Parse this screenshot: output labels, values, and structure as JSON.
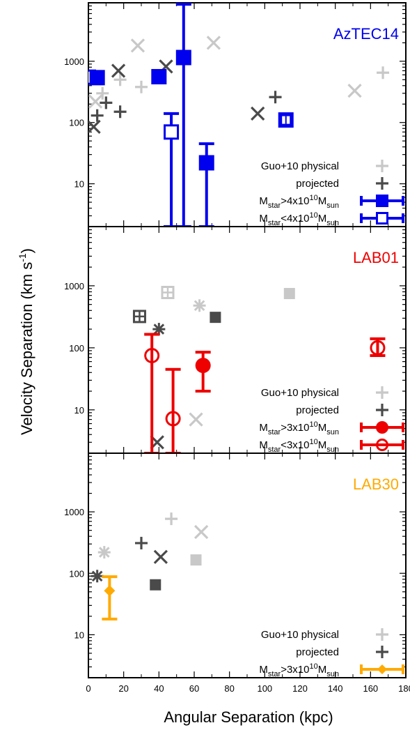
{
  "chart_data": {
    "type": "scatter",
    "xlabel": "Angular Separation (kpc)",
    "ylabel": "Velocity Separation (km s",
    "ylabel_sup": "-1",
    "ylabel_close": ")",
    "x_ticks": [
      0,
      20,
      40,
      60,
      80,
      100,
      120,
      140,
      160,
      180
    ],
    "y_ticks": [
      10,
      100,
      1000
    ],
    "xlim": [
      0,
      180
    ],
    "ylim": [
      2,
      9000
    ],
    "yscale": "log",
    "colors": {
      "physical": "#c8c8c8",
      "projected": "#4a4a4a"
    },
    "panels": [
      {
        "title": "AzTEC14",
        "color": "#0000ee",
        "legend": [
          {
            "kind": "physical",
            "label": "Guo+10 physical"
          },
          {
            "kind": "projected",
            "label": "projected"
          },
          {
            "kind": "filled",
            "marker": "square",
            "label": "M",
            "sub1": "star",
            "mid": ">4x10",
            "sup": "10",
            "m2": "M",
            "sub2": "sun"
          },
          {
            "kind": "open",
            "marker": "square",
            "label": "M",
            "sub1": "star",
            "mid": "<4x10",
            "sup": "10",
            "m2": "M",
            "sub2": "sun"
          }
        ],
        "points": [
          {
            "m": "x",
            "c": "physical",
            "x": 28,
            "y": 1800
          },
          {
            "m": "x",
            "c": "physical",
            "x": 71,
            "y": 2000
          },
          {
            "m": "x",
            "c": "physical",
            "x": 4,
            "y": 220
          },
          {
            "m": "x",
            "c": "physical",
            "x": 151,
            "y": 330
          },
          {
            "m": "+",
            "c": "physical",
            "x": 30,
            "y": 380
          },
          {
            "m": "+",
            "c": "physical",
            "x": 18,
            "y": 500
          },
          {
            "m": "+",
            "c": "physical",
            "x": 8,
            "y": 300
          },
          {
            "m": "+",
            "c": "physical",
            "x": 167,
            "y": 650
          },
          {
            "m": "x",
            "c": "projected",
            "x": 17,
            "y": 700
          },
          {
            "m": "x",
            "c": "projected",
            "x": 44,
            "y": 820
          },
          {
            "m": "x",
            "c": "projected",
            "x": 3,
            "y": 85
          },
          {
            "m": "x",
            "c": "projected",
            "x": 96,
            "y": 140
          },
          {
            "m": "+",
            "c": "projected",
            "x": 10,
            "y": 210
          },
          {
            "m": "+",
            "c": "projected",
            "x": 18,
            "y": 150
          },
          {
            "m": "+",
            "c": "projected",
            "x": 5,
            "y": 130
          },
          {
            "m": "+",
            "c": "projected",
            "x": 106,
            "y": 260
          }
        ],
        "measurements": [
          {
            "marker": "open-square",
            "x": 0,
            "y": 550
          },
          {
            "marker": "filled-square",
            "x": 5,
            "y": 540
          },
          {
            "marker": "filled-square",
            "x": 40,
            "y": 560
          },
          {
            "marker": "filled-square",
            "x": 54,
            "y": 1150,
            "err_low": 2,
            "err_high": 8500
          },
          {
            "marker": "open-square",
            "x": 47,
            "y": 70,
            "err_low": 2,
            "err_high": 140
          },
          {
            "marker": "filled-square",
            "x": 67,
            "y": 22,
            "err_low": 2,
            "err_high": 45
          },
          {
            "marker": "open-square-filled",
            "x": 112,
            "y": 110
          }
        ]
      },
      {
        "title": "LAB01",
        "color": "#ee0000",
        "legend": [
          {
            "kind": "physical",
            "label": "Guo+10 physical"
          },
          {
            "kind": "projected",
            "label": "projected"
          },
          {
            "kind": "filled",
            "marker": "circle",
            "label": "M",
            "sub1": "star",
            "mid": ">3x10",
            "sup": "10",
            "m2": "M",
            "sub2": "sun"
          },
          {
            "kind": "open",
            "marker": "circle",
            "label": "M",
            "sub1": "star",
            "mid": "<3x10",
            "sup": "10",
            "m2": "M",
            "sub2": "sun"
          }
        ],
        "points": [
          {
            "m": "boxplus",
            "c": "physical",
            "x": 45,
            "y": 780
          },
          {
            "m": "asterisk",
            "c": "physical",
            "x": 63,
            "y": 480
          },
          {
            "m": "square",
            "c": "physical",
            "x": 114,
            "y": 750
          },
          {
            "m": "x",
            "c": "physical",
            "x": 61,
            "y": 7
          },
          {
            "m": "boxplus",
            "c": "projected",
            "x": 29,
            "y": 320
          },
          {
            "m": "asterisk",
            "c": "projected",
            "x": 40,
            "y": 200
          },
          {
            "m": "square",
            "c": "projected",
            "x": 72,
            "y": 310
          },
          {
            "m": "x",
            "c": "projected",
            "x": 39,
            "y": 3
          }
        ],
        "measurements": [
          {
            "marker": "open-circle",
            "x": 36,
            "y": 75,
            "err_low": 2,
            "err_high": 165
          },
          {
            "marker": "open-circle",
            "x": 48,
            "y": 7.2,
            "err_low": 2,
            "err_high": 45
          },
          {
            "marker": "filled-circle",
            "x": 65,
            "y": 52,
            "err_low": 20,
            "err_high": 85
          },
          {
            "marker": "open-circle-err",
            "x": 164,
            "y": 100,
            "err_low": 75,
            "err_high": 140
          }
        ]
      },
      {
        "title": "LAB30",
        "color": "#ffaa00",
        "legend": [
          {
            "kind": "physical",
            "label": "Guo+10 physical"
          },
          {
            "kind": "projected",
            "label": "projected"
          },
          {
            "kind": "filled",
            "marker": "diamond",
            "label": "M",
            "sub1": "star",
            "mid": ">3x10",
            "sup": "10",
            "m2": "M",
            "sub2": "sun"
          }
        ],
        "points": [
          {
            "m": "asterisk",
            "c": "physical",
            "x": 9,
            "y": 220
          },
          {
            "m": "+",
            "c": "physical",
            "x": 47,
            "y": 770
          },
          {
            "m": "x",
            "c": "physical",
            "x": 64,
            "y": 470
          },
          {
            "m": "square",
            "c": "physical",
            "x": 61,
            "y": 165
          },
          {
            "m": "asterisk",
            "c": "projected",
            "x": 5,
            "y": 90
          },
          {
            "m": "+",
            "c": "projected",
            "x": 30,
            "y": 310
          },
          {
            "m": "x",
            "c": "projected",
            "x": 41,
            "y": 185
          },
          {
            "m": "square",
            "c": "projected",
            "x": 38,
            "y": 65
          }
        ],
        "measurements": [
          {
            "marker": "filled-diamond",
            "x": 12,
            "y": 52,
            "err_low": 18,
            "err_high": 88
          }
        ]
      }
    ]
  }
}
